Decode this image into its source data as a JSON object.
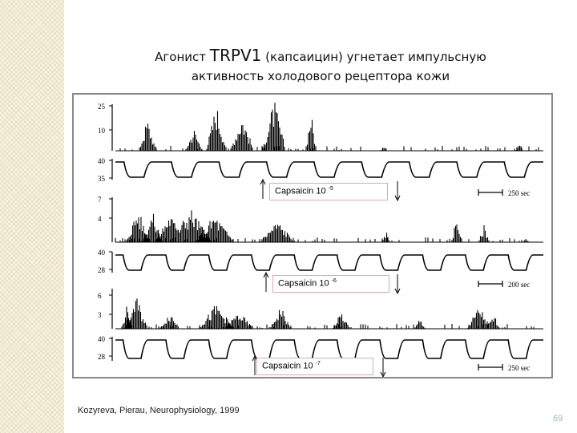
{
  "slide": {
    "title_prefix": "Агонист ",
    "title_highlight": "TRPV1",
    "title_suffix": " (капсаицин) угнетает импульсную",
    "title_line2": "активность холодового рецептора кожи",
    "citation": "Kozyreva, Pierau, Neurophysiology, 1999",
    "page_number": "69"
  },
  "figure": {
    "panels": [
      {
        "spike_ticks": [
          "25",
          "10"
        ],
        "temp_ticks": [
          "40",
          "35"
        ],
        "label_prefix": "Capsaicin 10 ",
        "label_exp": "-5",
        "scale": "250 sec"
      },
      {
        "spike_ticks": [
          "7",
          "4"
        ],
        "temp_ticks": [
          "40",
          "28"
        ],
        "label_prefix": "Capsaicin 10 ",
        "label_exp": "-6",
        "scale": "200 sec"
      },
      {
        "spike_ticks": [
          "6",
          "3"
        ],
        "temp_ticks": [
          "40",
          "28"
        ],
        "label_prefix": "Capsaicin 10 ",
        "label_exp": "-7",
        "scale": "250 sec"
      }
    ]
  }
}
